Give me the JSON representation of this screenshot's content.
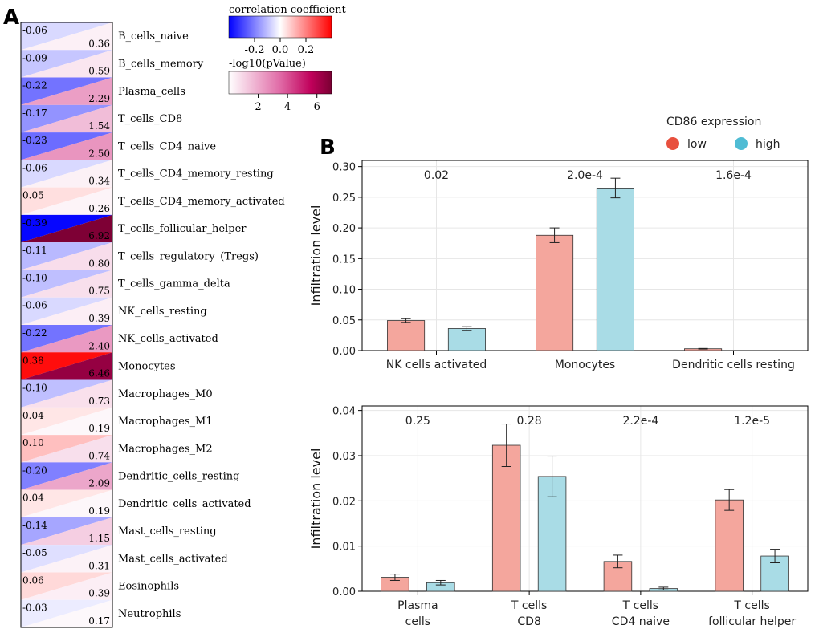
{
  "panel_a": {
    "label": "A",
    "colorbar_corr": {
      "title": "correlation coefficient",
      "ticks": [
        {
          "label": "-0.2",
          "value": -0.2
        },
        {
          "label": "0.0",
          "value": 0.0
        },
        {
          "label": "0.2",
          "value": 0.2
        }
      ],
      "range": [
        -0.4,
        0.4
      ],
      "neg_color": "#0000ff",
      "pos_color": "#ff0000"
    },
    "colorbar_p": {
      "title": "-log10(pValue)",
      "ticks": [
        {
          "label": "2",
          "value": 2
        },
        {
          "label": "4",
          "value": 4
        },
        {
          "label": "6",
          "value": 6
        }
      ],
      "range": [
        0,
        7
      ],
      "max_color": "#7a0033"
    },
    "rows": [
      {
        "cell": "B_cells_naive",
        "corr": "-0.06",
        "logp": "0.36"
      },
      {
        "cell": "B_cells_memory",
        "corr": "-0.09",
        "logp": "0.59"
      },
      {
        "cell": "Plasma_cells",
        "corr": "-0.22",
        "logp": "2.29"
      },
      {
        "cell": "T_cells_CD8",
        "corr": "-0.17",
        "logp": "1.54"
      },
      {
        "cell": "T_cells_CD4_naive",
        "corr": "-0.23",
        "logp": "2.50"
      },
      {
        "cell": "T_cells_CD4_memory_resting",
        "corr": "-0.06",
        "logp": "0.34"
      },
      {
        "cell": "T_cells_CD4_memory_activated",
        "corr": "0.05",
        "logp": "0.26"
      },
      {
        "cell": "T_cells_follicular_helper",
        "corr": "-0.39",
        "logp": "6.92"
      },
      {
        "cell": "T_cells_regulatory_(Tregs)",
        "corr": "-0.11",
        "logp": "0.80"
      },
      {
        "cell": "T_cells_gamma_delta",
        "corr": "-0.10",
        "logp": "0.75"
      },
      {
        "cell": "NK_cells_resting",
        "corr": "-0.06",
        "logp": "0.39"
      },
      {
        "cell": "NK_cells_activated",
        "corr": "-0.22",
        "logp": "2.40"
      },
      {
        "cell": "Monocytes",
        "corr": "0.38",
        "logp": "6.46"
      },
      {
        "cell": "Macrophages_M0",
        "corr": "-0.10",
        "logp": "0.73"
      },
      {
        "cell": "Macrophages_M1",
        "corr": "0.04",
        "logp": "0.19"
      },
      {
        "cell": "Macrophages_M2",
        "corr": "0.10",
        "logp": "0.74"
      },
      {
        "cell": "Dendritic_cells_resting",
        "corr": "-0.20",
        "logp": "2.09"
      },
      {
        "cell": "Dendritic_cells_activated",
        "corr": "0.04",
        "logp": "0.19"
      },
      {
        "cell": "Mast_cells_resting",
        "corr": "-0.14",
        "logp": "1.15"
      },
      {
        "cell": "Mast_cells_activated",
        "corr": "-0.05",
        "logp": "0.31"
      },
      {
        "cell": "Eosinophils",
        "corr": "0.06",
        "logp": "0.39"
      },
      {
        "cell": "Neutrophils",
        "corr": "-0.03",
        "logp": "0.17"
      }
    ]
  },
  "panel_b": {
    "label": "B",
    "legend": {
      "title": "CD86 expression",
      "items": [
        {
          "name": "low",
          "marker_color": "#e8503e"
        },
        {
          "name": "high",
          "marker_color": "#4fbcd4"
        }
      ]
    },
    "bar_colors": {
      "low": "#f4a69d",
      "high": "#a9dce6"
    }
  },
  "chart_data": [
    {
      "type": "heatmap",
      "title": "",
      "rows": [
        "B_cells_naive",
        "B_cells_memory",
        "Plasma_cells",
        "T_cells_CD8",
        "T_cells_CD4_naive",
        "T_cells_CD4_memory_resting",
        "T_cells_CD4_memory_activated",
        "T_cells_follicular_helper",
        "T_cells_regulatory_(Tregs)",
        "T_cells_gamma_delta",
        "NK_cells_resting",
        "NK_cells_activated",
        "Monocytes",
        "Macrophages_M0",
        "Macrophages_M1",
        "Macrophages_M2",
        "Dendritic_cells_resting",
        "Dendritic_cells_activated",
        "Mast_cells_resting",
        "Mast_cells_activated",
        "Eosinophils",
        "Neutrophils"
      ],
      "correlation": [
        -0.06,
        -0.09,
        -0.22,
        -0.17,
        -0.23,
        -0.06,
        0.05,
        -0.39,
        -0.11,
        -0.1,
        -0.06,
        -0.22,
        0.38,
        -0.1,
        0.04,
        0.1,
        -0.2,
        0.04,
        -0.14,
        -0.05,
        0.06,
        -0.03
      ],
      "neg_log10_p": [
        0.36,
        0.59,
        2.29,
        1.54,
        2.5,
        0.34,
        0.26,
        6.92,
        0.8,
        0.75,
        0.39,
        2.4,
        6.46,
        0.73,
        0.19,
        0.74,
        2.09,
        0.19,
        1.15,
        0.31,
        0.39,
        0.17
      ]
    },
    {
      "type": "bar",
      "title": "",
      "xlabel": "",
      "ylabel": "Infiltration level",
      "ylim": [
        0,
        0.31
      ],
      "yticks": [
        {
          "label": "0.00",
          "value": 0.0
        },
        {
          "label": "0.05",
          "value": 0.05
        },
        {
          "label": "0.10",
          "value": 0.1
        },
        {
          "label": "0.15",
          "value": 0.15
        },
        {
          "label": "0.20",
          "value": 0.2
        },
        {
          "label": "0.25",
          "value": 0.25
        },
        {
          "label": "0.30",
          "value": 0.3
        }
      ],
      "categories": [
        [
          "NK cells activated"
        ],
        [
          "Monocytes"
        ],
        [
          "Dendritic cells resting"
        ]
      ],
      "pvalues": [
        "0.02",
        "2.0e-4",
        "1.6e-4"
      ],
      "series": [
        {
          "name": "low",
          "values": [
            0.049,
            0.188,
            0.003
          ],
          "errors": [
            0.003,
            0.012,
            0.0005
          ]
        },
        {
          "name": "high",
          "values": [
            0.036,
            0.265,
            0.0
          ],
          "errors": [
            0.003,
            0.016,
            0.0
          ]
        }
      ]
    },
    {
      "type": "bar",
      "title": "",
      "xlabel": "",
      "ylabel": "Infiltration level",
      "ylim": [
        0,
        0.041
      ],
      "yticks": [
        {
          "label": "0.00",
          "value": 0.0
        },
        {
          "label": "0.01",
          "value": 0.01
        },
        {
          "label": "0.02",
          "value": 0.02
        },
        {
          "label": "0.03",
          "value": 0.03
        },
        {
          "label": "0.04",
          "value": 0.04
        }
      ],
      "categories": [
        [
          "Plasma",
          "cells"
        ],
        [
          "T cells",
          "CD8"
        ],
        [
          "T cells",
          "CD4 naive"
        ],
        [
          "T cells",
          "follicular helper"
        ]
      ],
      "pvalues": [
        "0.25",
        "0.28",
        "2.2e-4",
        "1.2e-5"
      ],
      "series": [
        {
          "name": "low",
          "values": [
            0.0031,
            0.0323,
            0.0066,
            0.0202
          ],
          "errors": [
            0.0007,
            0.0047,
            0.0014,
            0.0023
          ]
        },
        {
          "name": "high",
          "values": [
            0.0019,
            0.0254,
            0.0006,
            0.0078
          ],
          "errors": [
            0.0005,
            0.0045,
            0.0003,
            0.0015
          ]
        }
      ]
    }
  ]
}
